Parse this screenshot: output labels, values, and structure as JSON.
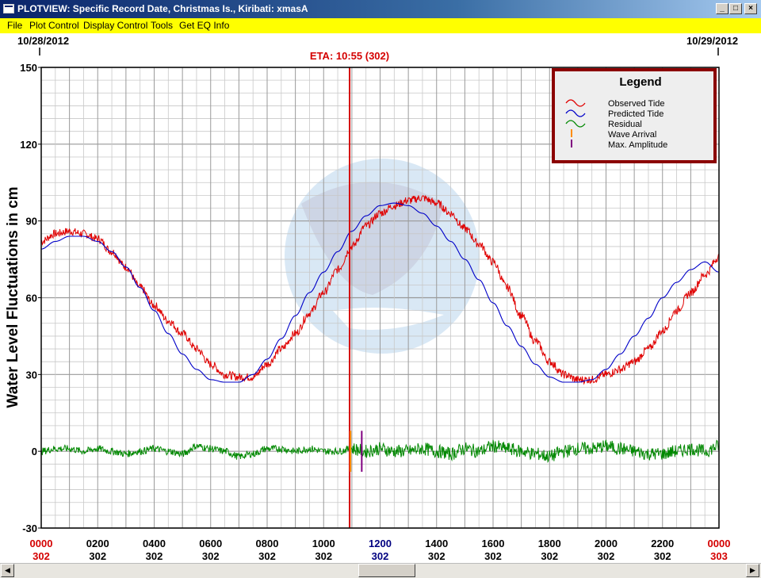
{
  "window": {
    "title": "PLOTVIEW: Specific Record Date, Christmas Is., Kiribati: xmasA",
    "buttons": {
      "minimize": "_",
      "maximize": "□",
      "close": "×"
    }
  },
  "menu": {
    "items": [
      "File",
      "Plot Control",
      "Display Control",
      "Tools",
      "Get EQ Info"
    ]
  },
  "chart": {
    "date_left": "10/28/2012",
    "date_right": "10/29/2012",
    "eta_label": "ETA: 10:55 (302)",
    "eta_color": "#d40000",
    "colors": {
      "observed": "#e00000",
      "predicted": "#0000c8",
      "residual": "#008800",
      "wave_arrival": "#ff8c00",
      "max_amplitude": "#800080"
    }
  },
  "legend": {
    "title": "Legend",
    "items": [
      {
        "label": "Observed Tide",
        "color": "#e00000",
        "icon": "wave"
      },
      {
        "label": "Predicted Tide",
        "color": "#0000c8",
        "icon": "wave"
      },
      {
        "label": "Residual",
        "color": "#008800",
        "icon": "wave"
      },
      {
        "label": "Wave Arrival",
        "color": "#ff8c00",
        "icon": "tick"
      },
      {
        "label": "Max. Amplitude",
        "color": "#800080",
        "icon": "tick"
      }
    ]
  },
  "watermark": {
    "icon": "noaa-logo"
  },
  "chart_data": {
    "type": "line",
    "title": "ETA: 10:55 (302)",
    "ylabel": "Water Level Fluctuations in cm",
    "xlabel": "",
    "ylim": [
      -30,
      150
    ],
    "xlim": [
      0,
      24
    ],
    "yticks": [
      -30,
      0,
      30,
      60,
      90,
      120,
      150
    ],
    "xticks": [
      {
        "x": 0,
        "time": "0000",
        "day": "302",
        "color": "red"
      },
      {
        "x": 2,
        "time": "0200",
        "day": "302",
        "color": "black"
      },
      {
        "x": 4,
        "time": "0400",
        "day": "302",
        "color": "black"
      },
      {
        "x": 6,
        "time": "0600",
        "day": "302",
        "color": "black"
      },
      {
        "x": 8,
        "time": "0800",
        "day": "302",
        "color": "black"
      },
      {
        "x": 10,
        "time": "1000",
        "day": "302",
        "color": "black"
      },
      {
        "x": 12,
        "time": "1200",
        "day": "302",
        "color": "navy"
      },
      {
        "x": 14,
        "time": "1400",
        "day": "302",
        "color": "black"
      },
      {
        "x": 16,
        "time": "1600",
        "day": "302",
        "color": "black"
      },
      {
        "x": 18,
        "time": "1800",
        "day": "302",
        "color": "black"
      },
      {
        "x": 20,
        "time": "2000",
        "day": "302",
        "color": "black"
      },
      {
        "x": 22,
        "time": "2200",
        "day": "302",
        "color": "black"
      },
      {
        "x": 24,
        "time": "0000",
        "day": "303",
        "color": "red"
      }
    ],
    "grid": true,
    "legend_position": "top-right",
    "eta_x": 10.92,
    "wave_arrival": {
      "x": 10.95,
      "ymin": -8,
      "ymax": 8
    },
    "max_amplitude": {
      "x": 11.35,
      "ymin": -8,
      "ymax": 8
    },
    "series": [
      {
        "name": "Observed Tide",
        "x": [
          0,
          0.5,
          1,
          1.5,
          2,
          2.5,
          3,
          3.5,
          4,
          4.5,
          5,
          5.5,
          6,
          6.5,
          7,
          7.5,
          8,
          8.5,
          9,
          9.5,
          10,
          10.5,
          11,
          11.5,
          12,
          12.5,
          13,
          13.5,
          14,
          14.5,
          15,
          15.5,
          16,
          16.5,
          17,
          17.5,
          18,
          18.5,
          19,
          19.5,
          20,
          20.5,
          21,
          21.5,
          22,
          22.5,
          23,
          23.5,
          24
        ],
        "y": [
          82,
          85,
          86,
          85,
          83,
          78,
          72,
          64,
          57,
          51,
          46,
          40,
          34,
          30,
          29,
          29,
          34,
          40,
          46,
          54,
          62,
          71,
          80,
          88,
          93,
          96,
          98,
          99,
          97,
          93,
          87,
          81,
          74,
          64,
          53,
          43,
          35,
          30,
          28,
          28,
          30,
          32,
          35,
          40,
          47,
          55,
          62,
          69,
          76
        ]
      },
      {
        "name": "Predicted Tide",
        "x": [
          0,
          0.5,
          1,
          1.5,
          2,
          2.5,
          3,
          3.5,
          4,
          4.5,
          5,
          5.5,
          6,
          6.5,
          7,
          7.5,
          8,
          8.5,
          9,
          9.5,
          10,
          10.5,
          11,
          11.5,
          12,
          12.5,
          13,
          13.5,
          14,
          14.5,
          15,
          15.5,
          16,
          16.5,
          17,
          17.5,
          18,
          18.5,
          19,
          19.5,
          20,
          20.5,
          21,
          21.5,
          22,
          22.5,
          23,
          23.5,
          24
        ],
        "y": [
          79,
          82,
          84,
          84,
          82,
          78,
          72,
          64,
          55,
          46,
          38,
          32,
          28,
          27,
          27,
          30,
          36,
          44,
          53,
          62,
          70,
          78,
          86,
          92,
          96,
          97,
          96,
          93,
          88,
          82,
          75,
          67,
          58,
          49,
          41,
          34,
          29,
          27,
          27,
          28,
          32,
          38,
          45,
          52,
          60,
          66,
          71,
          74,
          70
        ]
      },
      {
        "name": "Residual",
        "x": [
          0,
          0.5,
          1,
          1.5,
          2,
          2.5,
          3,
          3.5,
          4,
          4.5,
          5,
          5.5,
          6,
          6.5,
          7,
          7.5,
          8,
          8.5,
          9,
          9.5,
          10,
          10.5,
          11,
          11.5,
          12,
          12.5,
          13,
          13.5,
          14,
          14.5,
          15,
          15.5,
          16,
          16.5,
          17,
          17.5,
          18,
          18.5,
          19,
          19.5,
          20,
          20.5,
          21,
          21.5,
          22,
          22.5,
          23,
          23.5,
          24
        ],
        "y": [
          0,
          1,
          1,
          0,
          1,
          0,
          -1,
          0,
          1,
          0,
          -1,
          2,
          1,
          0,
          -2,
          -1,
          1,
          1,
          0,
          1,
          0,
          0,
          1,
          0,
          1,
          0,
          0,
          1,
          0,
          -1,
          1,
          0,
          2,
          1,
          0,
          -1,
          -2,
          0,
          1,
          1,
          2,
          1,
          0,
          -1,
          -1,
          0,
          1,
          0,
          2
        ]
      }
    ]
  }
}
